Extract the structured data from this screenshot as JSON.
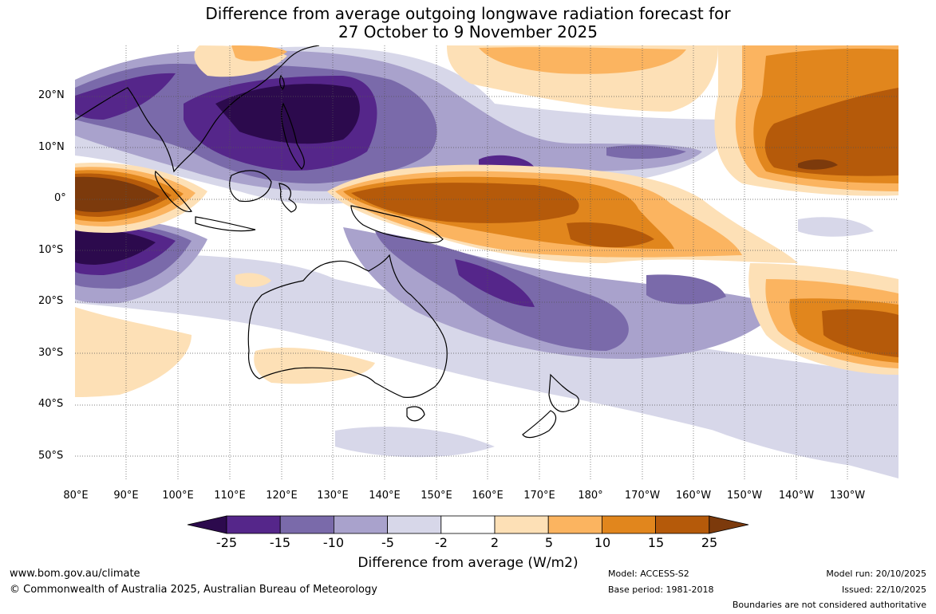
{
  "title_line1": "Difference from average outgoing longwave radiation forecast for",
  "title_line2": "27 October to 9 November 2025",
  "lat_labels": [
    "20°N",
    "10°N",
    "0°",
    "10°S",
    "20°S",
    "30°S",
    "40°S",
    "50°S"
  ],
  "lon_labels": [
    "80°E",
    "90°E",
    "100°E",
    "110°E",
    "120°E",
    "130°E",
    "140°E",
    "150°E",
    "160°E",
    "170°E",
    "180°",
    "170°W",
    "160°W",
    "150°W",
    "140°W",
    "130°W"
  ],
  "colorbar": {
    "ticks": [
      "-25",
      "-15",
      "-10",
      "-5",
      "-2",
      "2",
      "5",
      "10",
      "15",
      "25"
    ],
    "colors": [
      "#2c0a4d",
      "#55268a",
      "#7a6aaa",
      "#a9a2cc",
      "#d7d7e9",
      "#ffffff",
      "#fde0b6",
      "#fbb460",
      "#e1861d",
      "#b55a0a",
      "#7c3a0c"
    ],
    "title": "Difference from average (W/m2)"
  },
  "footer": {
    "url": "www.bom.gov.au/climate",
    "copyright": "© Commonwealth of Australia 2025, Australian Bureau of Meteorology",
    "model": "Model: ACCESS-S2",
    "base_period": "Base period: 1981-2018",
    "model_run": "Model run: 20/10/2025",
    "issued": "Issued: 22/10/2025",
    "disclaimer": "Boundaries are not considered authoritative"
  }
}
